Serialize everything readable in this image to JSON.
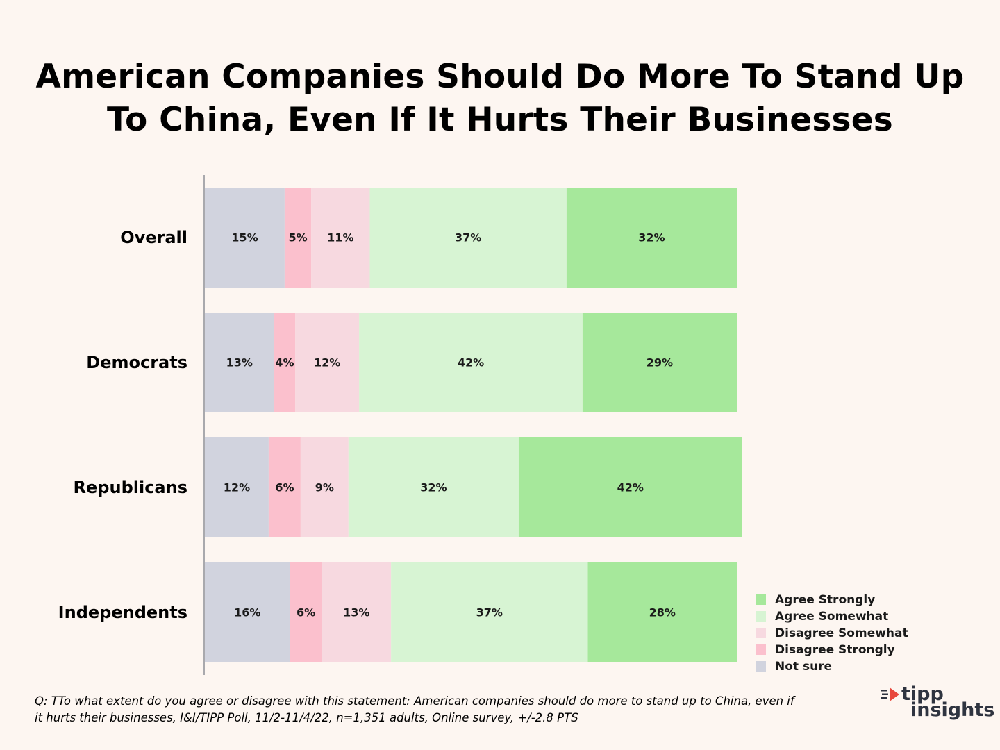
{
  "title": {
    "line1": "American Companies Should Do More To Stand Up",
    "line2": "To China, Even If It Hurts Their Businesses"
  },
  "chart_data": {
    "type": "bar",
    "orientation": "horizontal",
    "stacked": true,
    "title": "American Companies Should Do More To Stand Up To China, Even If It Hurts Their Businesses",
    "xlabel": "",
    "ylabel": "",
    "categories": [
      "Overall",
      "Democrats",
      "Republicans",
      "Independents"
    ],
    "series": [
      {
        "name": "Not sure",
        "color": "#d1d3de",
        "values": [
          15,
          13,
          12,
          16
        ]
      },
      {
        "name": "Disagree Strongly",
        "color": "#fbc0cd",
        "values": [
          5,
          4,
          6,
          6
        ]
      },
      {
        "name": "Disagree Somewhat",
        "color": "#f7d9e0",
        "values": [
          11,
          12,
          9,
          13
        ]
      },
      {
        "name": "Agree Somewhat",
        "color": "#d7f4d3",
        "values": [
          37,
          42,
          32,
          37
        ]
      },
      {
        "name": "Agree Strongly",
        "color": "#a6e89b",
        "values": [
          32,
          29,
          42,
          28
        ]
      }
    ],
    "legend": [
      "Agree Strongly",
      "Agree Somewhat",
      "Disagree Somewhat",
      "Disagree Strongly",
      "Not sure"
    ],
    "legend_position": "bottom-right",
    "value_suffix": "%",
    "grid": false
  },
  "footnote": {
    "line1": "Q: TTo what extent do you agree or disagree with this statement: American companies should do more to stand up to China, even if",
    "line2": "it hurts their businesses, I&I/TIPP Poll, 11/2-11/4/22, n=1,351 adults, Online survey, +/-2.8 PTS"
  },
  "logo": {
    "line1": "tipp",
    "line2": "insights",
    "accent_color": "#e8473c"
  }
}
